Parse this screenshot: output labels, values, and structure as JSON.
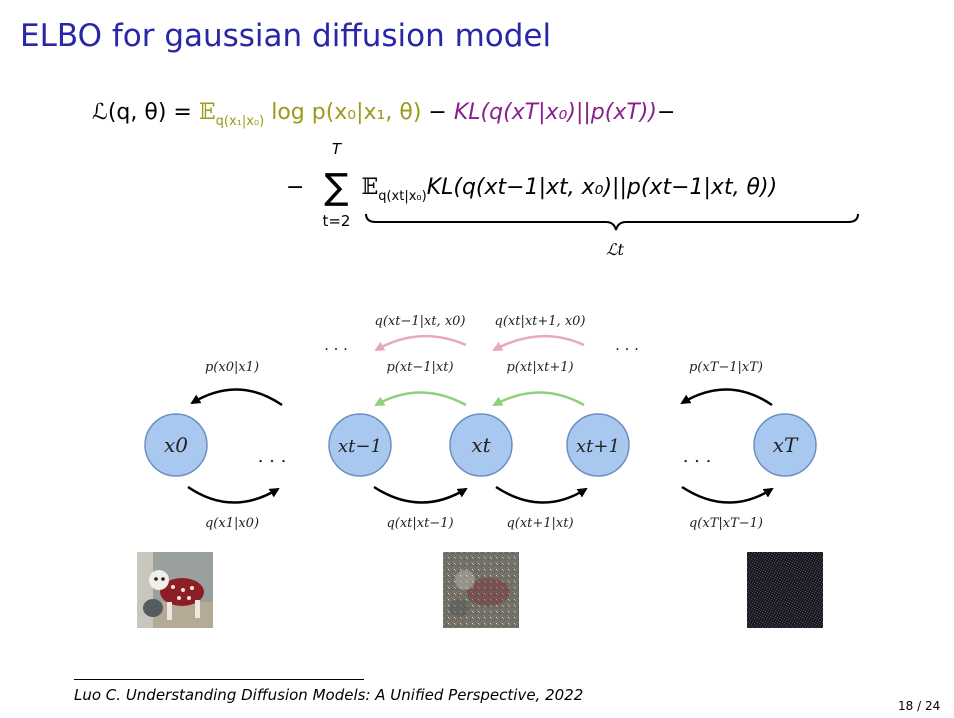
{
  "slide": {
    "title": "ELBO for gaussian diffusion model",
    "footnote": "Luo C. Understanding Diffusion Models: A Unified Perspective, 2022",
    "page": "18 / 24"
  },
  "equation": {
    "lhs": "ℒ(q, θ) = ",
    "expect_E": "𝔼",
    "expect1_sub": "q(x₁|x₀)",
    "term1": " log p(x₀|x₁, θ) ",
    "minus": "− ",
    "kl_term": "KL(q(xT|x₀)||p(xT))",
    "trail_minus": "−",
    "lead_minus": "− ",
    "sum_top": "T",
    "sum_sigma": "∑",
    "sum_bottom": "t=2",
    "expect2_sub": "q(xt|x₀)",
    "term2": "KL(q(xt−1|xt, x₀)||p(xt−1|xt, θ))",
    "underbrace_label": "ℒt"
  },
  "diagram": {
    "nodes": [
      "x0",
      "xt−1",
      "xt",
      "xt+1",
      "xT"
    ],
    "ellipses": ". . .",
    "top_pink_labels": [
      "q(xt−1|xt, x0)",
      "q(xt|xt+1, x0)"
    ],
    "top_black_labels": [
      "p(x0|x1)",
      "p(xt−1|xt)",
      "p(xt|xt+1)",
      "p(xT−1|xT)"
    ],
    "bottom_labels": [
      "q(x1|x0)",
      "q(xt|xt−1)",
      "q(xt+1|xt)",
      "q(xT|xT−1)"
    ],
    "colors": {
      "node_fill": "#a9c8f0",
      "node_stroke": "#6d8fc0",
      "pink_arrow": "#e8a9c0",
      "green_arrow": "#8fd07a",
      "black_arrow": "#000000"
    }
  }
}
